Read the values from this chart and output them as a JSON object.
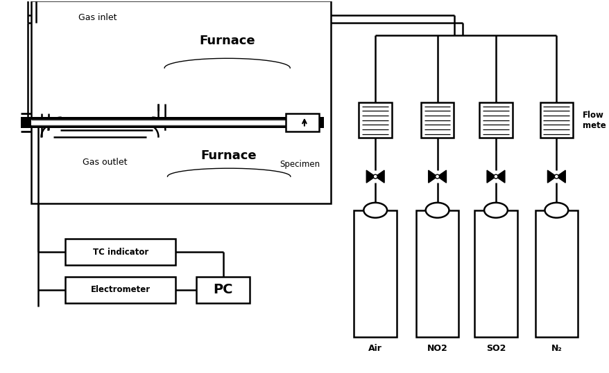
{
  "bg_color": "#ffffff",
  "line_color": "#000000",
  "furnace_labels": [
    "Furnace",
    "Furnace"
  ],
  "gas_labels": [
    "Air",
    "NO2",
    "SO2",
    "N₂"
  ],
  "gas_inlet_label": "Gas inlet",
  "gas_outlet_label": "Gas outlet",
  "specimen_label": "Specimen",
  "tc_indicator_label": "TC indicator",
  "electrometer_label": "Electrometer",
  "pc_label": "PC",
  "flowmeter_label": "Flow\nmete",
  "lw_thin": 1.0,
  "lw_medium": 1.8,
  "lw_thick": 5.0
}
